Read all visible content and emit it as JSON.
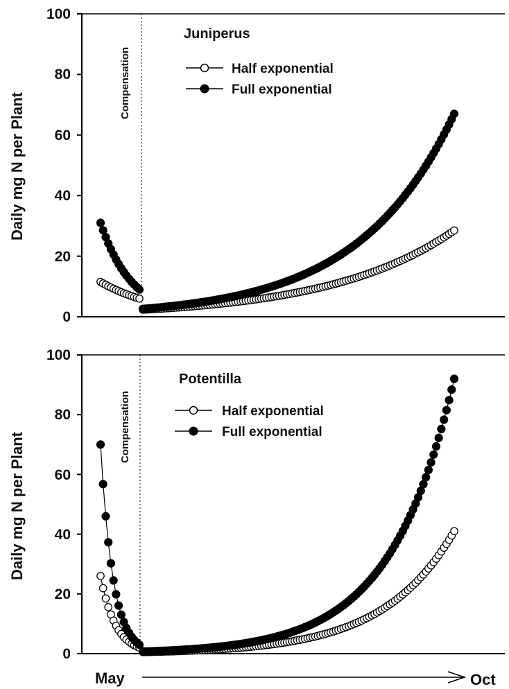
{
  "chart_data": [
    {
      "type": "scatter",
      "title": "Juniperus",
      "ylabel": "Daily mg N per Plant",
      "ylim": [
        0,
        100
      ],
      "yticks": [
        "0",
        "20",
        "40",
        "60",
        "80",
        "100"
      ],
      "x_start_label": "May",
      "x_end_label": "Oct",
      "vline_label": "Compensation",
      "series": [
        {
          "name": "Half exponential",
          "marker": "open-circle",
          "segments": [
            {
              "x_start": 0,
              "x_end": 15,
              "start_value": 11.5,
              "end_value": 6.0
            },
            {
              "x_start": 16,
              "x_end": 130,
              "start_value": 2.3,
              "end_value": 28.5
            }
          ]
        },
        {
          "name": "Full exponential",
          "marker": "filled-circle",
          "segments": [
            {
              "x_start": 0,
              "x_end": 15,
              "start_value": 31.0,
              "end_value": 9.0
            },
            {
              "x_start": 16,
              "x_end": 130,
              "start_value": 2.6,
              "end_value": 67.0
            }
          ]
        }
      ],
      "grid": false
    },
    {
      "type": "scatter",
      "title": "Potentilla",
      "ylabel": "Daily mg N per Plant",
      "ylim": [
        0,
        100
      ],
      "yticks": [
        "0",
        "20",
        "40",
        "60",
        "80",
        "100"
      ],
      "x_start_label": "May",
      "x_end_label": "Oct",
      "vline_label": "Compensation",
      "series": [
        {
          "name": "Half exponential",
          "marker": "open-circle",
          "segments": [
            {
              "x_start": 0,
              "x_end": 15,
              "start_value": 26.0,
              "end_value": 2.0
            },
            {
              "x_start": 16,
              "x_end": 130,
              "start_value": 0.5,
              "end_value": 41.0
            }
          ]
        },
        {
          "name": "Full exponential",
          "marker": "filled-circle",
          "segments": [
            {
              "x_start": 0,
              "x_end": 15,
              "start_value": 70.0,
              "end_value": 3.0
            },
            {
              "x_start": 16,
              "x_end": 130,
              "start_value": 0.7,
              "end_value": 92.0
            }
          ]
        }
      ],
      "grid": false
    }
  ]
}
